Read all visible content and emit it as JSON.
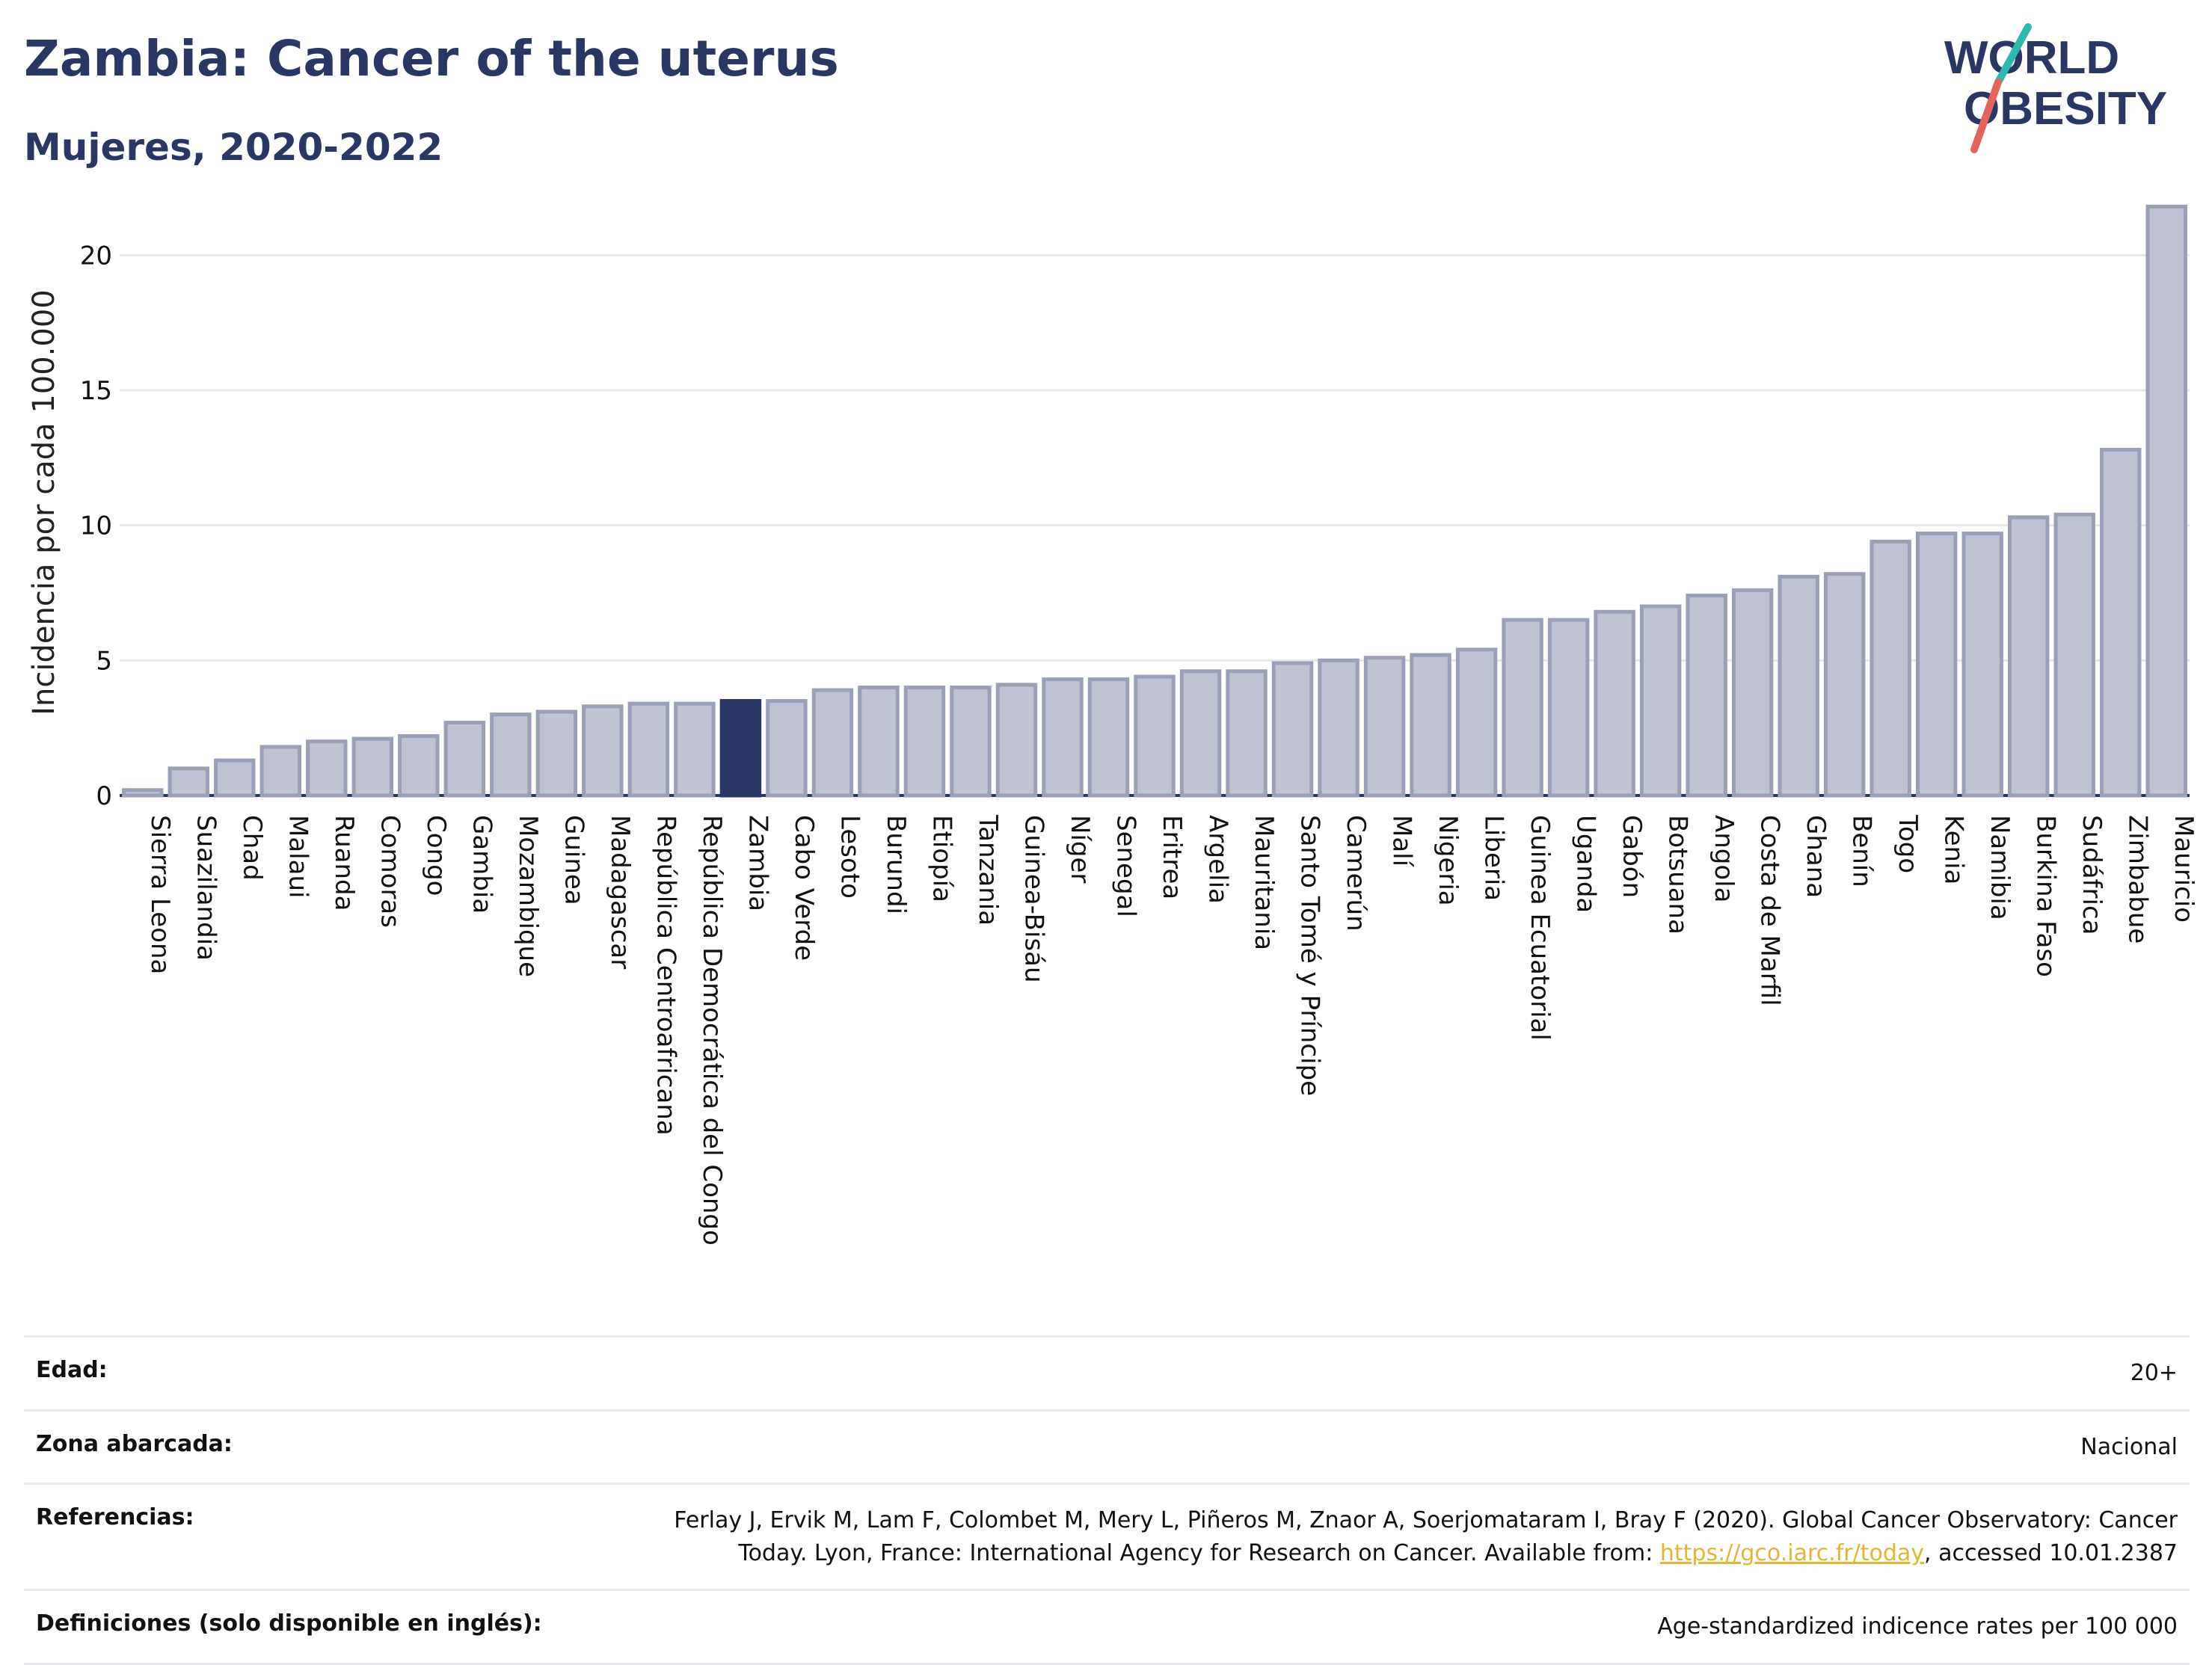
{
  "header": {
    "title": "Zambia: Cancer of the uterus",
    "subtitle": "Mujeres, 2020-2022"
  },
  "logo": {
    "line1": "WORLD",
    "line2": "OBESITY"
  },
  "colors": {
    "bar_fill": "#bfc3d1",
    "bar_stroke": "#9aa0b8",
    "highlight": "#2a3663",
    "grid": "#e6e7ec",
    "logo_teal": "#2fb8b0",
    "logo_red": "#e2645a"
  },
  "chart_data": {
    "type": "bar",
    "ylabel": "Incidencia por cada 100.000",
    "xlabel": "",
    "ylim": [
      0,
      22.5
    ],
    "yticks": [
      0,
      5,
      10,
      15,
      20
    ],
    "grid": true,
    "highlight": "Zambia",
    "categories": [
      "Sierra Leona",
      "Suazilandia",
      "Chad",
      "Malaui",
      "Ruanda",
      "Comoras",
      "Congo",
      "Gambia",
      "Mozambique",
      "Guinea",
      "Madagascar",
      "República Centroafricana",
      "República Democrática del Congo",
      "Zambia",
      "Cabo Verde",
      "Lesoto",
      "Burundi",
      "Etiopía",
      "Tanzania",
      "Guinea-Bisáu",
      "Níger",
      "Senegal",
      "Eritrea",
      "Argelia",
      "Mauritania",
      "Santo Tomé y Príncipe",
      "Camerún",
      "Malí",
      "Nigeria",
      "Liberia",
      "Guinea Ecuatorial",
      "Uganda",
      "Gabón",
      "Botsuana",
      "Angola",
      "Costa de Marfil",
      "Ghana",
      "Benín",
      "Togo",
      "Kenia",
      "Namibia",
      "Burkina Faso",
      "Sudáfrica",
      "Zimbabue",
      "Mauricio"
    ],
    "values": [
      0.2,
      1.0,
      1.3,
      1.8,
      2.0,
      2.1,
      2.2,
      2.7,
      3.0,
      3.1,
      3.3,
      3.4,
      3.4,
      3.5,
      3.5,
      3.9,
      4.0,
      4.0,
      4.0,
      4.1,
      4.3,
      4.3,
      4.4,
      4.6,
      4.6,
      4.9,
      5.0,
      5.1,
      5.2,
      5.4,
      6.5,
      6.5,
      6.8,
      7.0,
      7.4,
      7.6,
      8.1,
      8.2,
      9.4,
      9.7,
      9.7,
      10.3,
      10.4,
      12.8,
      21.8
    ]
  },
  "info": [
    {
      "label": "Edad:",
      "value": "20+"
    },
    {
      "label": "Zona abarcada:",
      "value": "Nacional"
    },
    {
      "label": "Referencias:",
      "value_line1": "Ferlay J, Ervik M, Lam F, Colombet M, Mery L, Piñeros M, Znaor A, Soerjomataram I, Bray F (2020). Global Cancer Observatory: Cancer",
      "value_line2_pre": "Today. Lyon, France: International Agency for Research on Cancer. Available from: ",
      "link_text": "https://gco.iarc.fr/today",
      "value_line2_post": ", accessed 10.01.2387"
    },
    {
      "label": "Definiciones (solo disponible en inglés):",
      "value": "Age-standardized indicence rates per 100 000"
    }
  ]
}
